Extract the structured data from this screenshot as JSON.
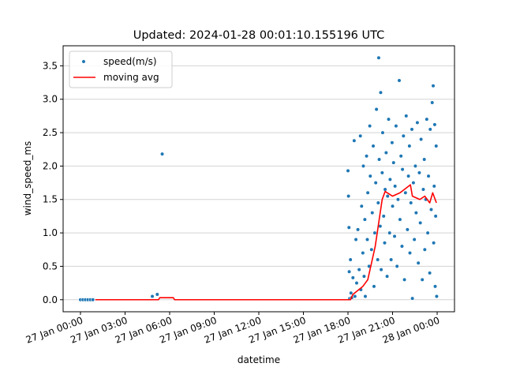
{
  "chart_data": {
    "type": "scatter",
    "title": "Updated: 2024-01-28 00:01:10.155196 UTC",
    "xlabel": "datetime",
    "ylabel": "wind_speed_ms",
    "legend": "upper left",
    "grid": "y",
    "xlim": [
      "26 Jan 22:50",
      "28 Jan 01:10"
    ],
    "xticks": [
      "27 Jan 00:00",
      "27 Jan 03:00",
      "27 Jan 06:00",
      "27 Jan 09:00",
      "27 Jan 12:00",
      "27 Jan 15:00",
      "27 Jan 18:00",
      "27 Jan 21:00",
      "28 Jan 00:00"
    ],
    "ylim": [
      -0.18,
      3.8
    ],
    "yticks": [
      {
        "value": 0,
        "label": "0.0"
      },
      0.5,
      {
        "value": 1,
        "label": "1.0"
      },
      1.5,
      {
        "value": 2,
        "label": "2.0"
      },
      2.5,
      {
        "value": 3,
        "label": "3.0"
      },
      3.5
    ],
    "series": [
      {
        "name": "speed(m/s)",
        "type": "scatter",
        "color": "#1f77b4",
        "x": [
          "27 Jan 00:00",
          "27 Jan 00:10",
          "27 Jan 00:20",
          "27 Jan 00:30",
          "27 Jan 00:40",
          "27 Jan 00:50",
          "27 Jan 04:50",
          "27 Jan 05:10",
          "27 Jan 05:30",
          "27 Jan 18:00",
          "27 Jan 18:02",
          "27 Jan 18:04",
          "27 Jan 18:05",
          "27 Jan 18:07",
          "27 Jan 18:10",
          "27 Jan 18:12",
          "27 Jan 18:15",
          "27 Jan 18:20",
          "27 Jan 18:25",
          "27 Jan 18:28",
          "27 Jan 18:32",
          "27 Jan 18:35",
          "27 Jan 18:40",
          "27 Jan 18:45",
          "27 Jan 18:50",
          "27 Jan 18:52",
          "27 Jan 18:55",
          "27 Jan 19:00",
          "27 Jan 19:02",
          "27 Jan 19:05",
          "27 Jan 19:08",
          "27 Jan 19:10",
          "27 Jan 19:15",
          "27 Jan 19:18",
          "27 Jan 19:20",
          "27 Jan 19:25",
          "27 Jan 19:28",
          "27 Jan 19:30",
          "27 Jan 19:35",
          "27 Jan 19:38",
          "27 Jan 19:42",
          "27 Jan 19:45",
          "27 Jan 19:48",
          "27 Jan 19:52",
          "27 Jan 19:55",
          "27 Jan 20:00",
          "27 Jan 20:02",
          "27 Jan 20:04",
          "27 Jan 20:06",
          "27 Jan 20:10",
          "27 Jan 20:12",
          "27 Jan 20:14",
          "27 Jan 20:18",
          "27 Jan 20:20",
          "27 Jan 20:24",
          "27 Jan 20:28",
          "27 Jan 20:30",
          "27 Jan 20:34",
          "27 Jan 20:38",
          "27 Jan 20:40",
          "27 Jan 20:44",
          "27 Jan 20:48",
          "27 Jan 20:50",
          "27 Jan 20:54",
          "27 Jan 20:58",
          "27 Jan 21:00",
          "27 Jan 21:04",
          "27 Jan 21:08",
          "27 Jan 21:10",
          "27 Jan 21:14",
          "27 Jan 21:18",
          "27 Jan 21:22",
          "27 Jan 21:27",
          "27 Jan 21:30",
          "27 Jan 21:34",
          "27 Jan 21:38",
          "27 Jan 21:40",
          "27 Jan 21:44",
          "27 Jan 21:48",
          "27 Jan 21:52",
          "27 Jan 21:55",
          "27 Jan 22:00",
          "27 Jan 22:04",
          "27 Jan 22:08",
          "27 Jan 22:10",
          "27 Jan 22:14",
          "27 Jan 22:18",
          "27 Jan 22:20",
          "27 Jan 22:24",
          "27 Jan 22:28",
          "27 Jan 22:32",
          "27 Jan 22:35",
          "27 Jan 22:40",
          "27 Jan 22:44",
          "27 Jan 22:48",
          "27 Jan 22:52",
          "27 Jan 22:55",
          "27 Jan 23:00",
          "27 Jan 23:04",
          "27 Jan 23:08",
          "27 Jan 23:10",
          "27 Jan 23:14",
          "27 Jan 23:18",
          "27 Jan 23:22",
          "27 Jan 23:25",
          "27 Jan 23:30",
          "27 Jan 23:32",
          "27 Jan 23:36",
          "27 Jan 23:40",
          "27 Jan 23:44",
          "27 Jan 23:46",
          "27 Jan 23:48",
          "27 Jan 23:50",
          "27 Jan 23:52",
          "27 Jan 23:54",
          "27 Jan 23:56",
          "27 Jan 23:58"
        ],
        "values": [
          0,
          0,
          0,
          0,
          0,
          0,
          0.05,
          0.08,
          2.18,
          1.93,
          1.55,
          1.08,
          0.42,
          0.02,
          0.6,
          0.1,
          0.03,
          0.33,
          2.38,
          0.05,
          0.9,
          0.25,
          1.05,
          0.45,
          2.45,
          0.15,
          1.4,
          0.7,
          2.0,
          0.35,
          1.2,
          0.05,
          2.15,
          0.9,
          1.6,
          0.5,
          2.6,
          1.85,
          0.75,
          1.3,
          2.3,
          0.2,
          1.0,
          1.75,
          2.85,
          0.6,
          1.45,
          3.62,
          2.1,
          1.1,
          3.1,
          0.45,
          1.9,
          2.5,
          1.25,
          0.85,
          1.65,
          2.2,
          0.35,
          1.55,
          2.7,
          1.0,
          1.8,
          0.6,
          2.35,
          1.4,
          2.05,
          0.95,
          1.7,
          2.6,
          0.5,
          1.5,
          3.28,
          1.2,
          2.15,
          0.8,
          1.95,
          2.45,
          0.3,
          1.6,
          2.75,
          1.05,
          1.85,
          2.3,
          0.7,
          1.45,
          2.55,
          0.02,
          1.75,
          0.9,
          2.0,
          1.3,
          2.65,
          0.55,
          1.9,
          1.15,
          2.4,
          0.3,
          1.65,
          2.1,
          0.75,
          1.5,
          2.7,
          1.0,
          1.85,
          0.4,
          2.55,
          1.35,
          2.95,
          3.2,
          0.85,
          1.7,
          2.62,
          0.2,
          1.25,
          2.3,
          0.05
        ]
      },
      {
        "name": "moving avg",
        "type": "line",
        "color": "#ff0000",
        "x": [
          "27 Jan 01:00",
          "27 Jan 05:15",
          "27 Jan 05:20",
          "27 Jan 06:15",
          "27 Jan 06:20",
          "27 Jan 18:10",
          "27 Jan 18:20",
          "27 Jan 19:00",
          "27 Jan 19:20",
          "27 Jan 19:50",
          "27 Jan 20:18",
          "27 Jan 20:30",
          "27 Jan 21:00",
          "27 Jan 21:30",
          "27 Jan 22:12",
          "27 Jan 22:20",
          "27 Jan 22:50",
          "27 Jan 23:10",
          "27 Jan 23:30",
          "27 Jan 23:42",
          "27 Jan 23:57"
        ],
        "values": [
          0,
          0,
          0.03,
          0.03,
          0,
          0,
          0.08,
          0.2,
          0.3,
          0.8,
          1.5,
          1.62,
          1.55,
          1.6,
          1.72,
          1.55,
          1.5,
          1.55,
          1.45,
          1.6,
          1.45
        ]
      }
    ]
  }
}
